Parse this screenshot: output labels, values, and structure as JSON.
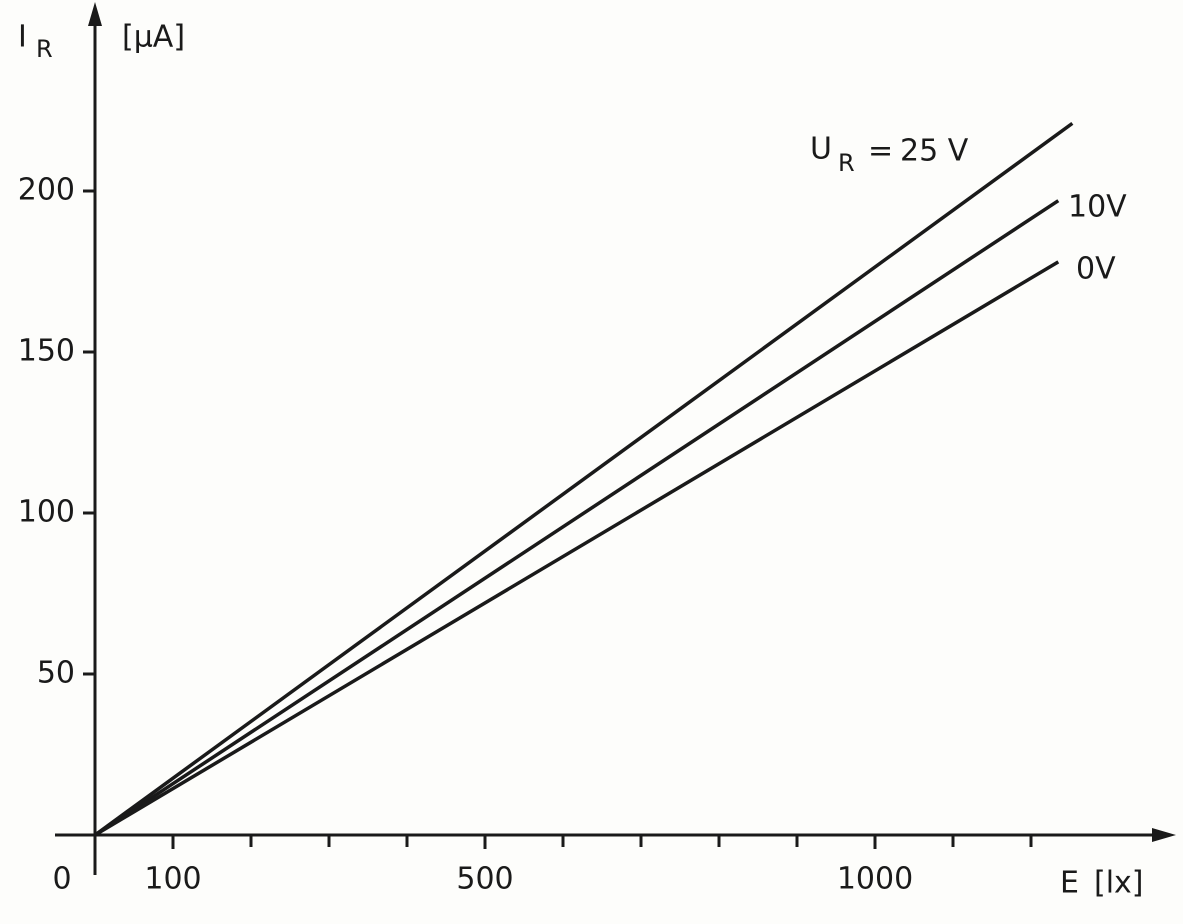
{
  "chart_data": {
    "type": "line",
    "y_axis_title": {
      "symbol": "I",
      "subscript": "R",
      "unit": "[μA]"
    },
    "x_axis_title": {
      "symbol": "E",
      "unit": "[lx]"
    },
    "origin_label": "0",
    "label_prefix": {
      "symbol": "U",
      "subscript": "R",
      "sign": "="
    },
    "xlim": [
      0,
      1380
    ],
    "ylim": [
      0,
      250
    ],
    "xticks": [
      100,
      500,
      1000
    ],
    "xminor_ticks": [
      200,
      300,
      400,
      600,
      700,
      800,
      900,
      1100,
      1200
    ],
    "yticks": [
      50,
      100,
      150,
      200
    ],
    "series": [
      {
        "name": "25 V",
        "color": "#1a1a1a",
        "x": [
          0,
          1253
        ],
        "values": [
          0,
          221
        ]
      },
      {
        "name": "10V",
        "color": "#1a1a1a",
        "x": [
          0,
          1235
        ],
        "values": [
          0,
          197
        ]
      },
      {
        "name": "0V",
        "color": "#1a1a1a",
        "x": [
          0,
          1235
        ],
        "values": [
          0,
          178
        ]
      }
    ]
  }
}
